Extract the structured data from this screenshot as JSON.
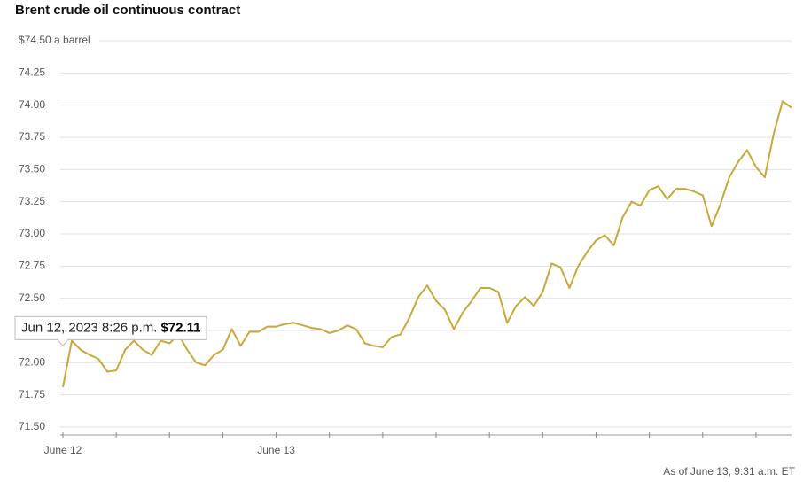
{
  "chart_data": {
    "type": "line",
    "title": "Brent crude oil continuous contract",
    "note": "As of June 13, 9:31 a.m. ET",
    "categories": [
      "June 12",
      null,
      null,
      null,
      null,
      null,
      null,
      null,
      null,
      null,
      null,
      null,
      null,
      null,
      null,
      null,
      null,
      null,
      null,
      null,
      null,
      null,
      null,
      null,
      "June 13",
      null,
      null,
      null,
      null,
      null,
      null,
      null,
      null,
      null,
      null,
      null,
      null,
      null,
      null,
      null,
      null,
      null,
      null,
      null,
      null,
      null,
      null,
      null,
      null,
      null,
      null,
      null,
      null,
      null,
      null,
      null,
      null,
      null,
      null,
      null,
      null,
      null,
      null,
      null,
      null,
      null,
      null,
      null,
      null,
      null,
      null,
      null,
      null,
      null,
      null,
      null,
      null,
      null,
      null,
      null,
      null,
      null,
      null
    ],
    "series": [
      {
        "color": "#c8a838",
        "values": [
          71.81,
          72.17,
          72.1,
          72.06,
          72.03,
          71.93,
          71.94,
          72.1,
          72.17,
          72.1,
          72.06,
          72.17,
          72.15,
          72.22,
          72.1,
          72.0,
          71.98,
          72.06,
          72.1,
          72.26,
          72.13,
          72.24,
          72.24,
          72.28,
          72.28,
          72.3,
          72.31,
          72.29,
          72.27,
          72.26,
          72.23,
          72.25,
          72.29,
          72.26,
          72.15,
          72.13,
          72.12,
          72.2,
          72.22,
          72.35,
          72.51,
          72.6,
          72.48,
          72.41,
          72.26,
          72.39,
          72.48,
          72.58,
          72.58,
          72.55,
          72.31,
          72.44,
          72.51,
          72.44,
          72.55,
          72.77,
          72.74,
          72.58,
          72.75,
          72.86,
          72.95,
          72.99,
          72.91,
          73.13,
          73.25,
          73.22,
          73.34,
          73.37,
          73.27,
          73.35,
          73.35,
          73.33,
          73.3,
          73.06,
          73.23,
          73.44,
          73.56,
          73.65,
          73.52,
          73.44,
          73.78,
          74.03,
          73.98
        ]
      }
    ],
    "ylim": [
      71.5,
      74.5
    ],
    "yticks": [
      {
        "value": 71.5,
        "label": "71.50"
      },
      71.75,
      {
        "value": 72,
        "label": "72.00"
      },
      72.25,
      {
        "value": 72.5,
        "label": "72.50"
      },
      72.75,
      {
        "value": 73,
        "label": "73.00"
      },
      73.25,
      {
        "value": 73.5,
        "label": "73.50"
      },
      73.75,
      {
        "value": 74,
        "label": "74.00"
      },
      74.25,
      {
        "value": 74.5,
        "label": "$74.50 a barrel"
      }
    ],
    "grid": true,
    "tooltip": {
      "text": "Jun 12, 2023 8:26 p.m.",
      "value": 72.11,
      "value_label": "$72.11"
    }
  }
}
